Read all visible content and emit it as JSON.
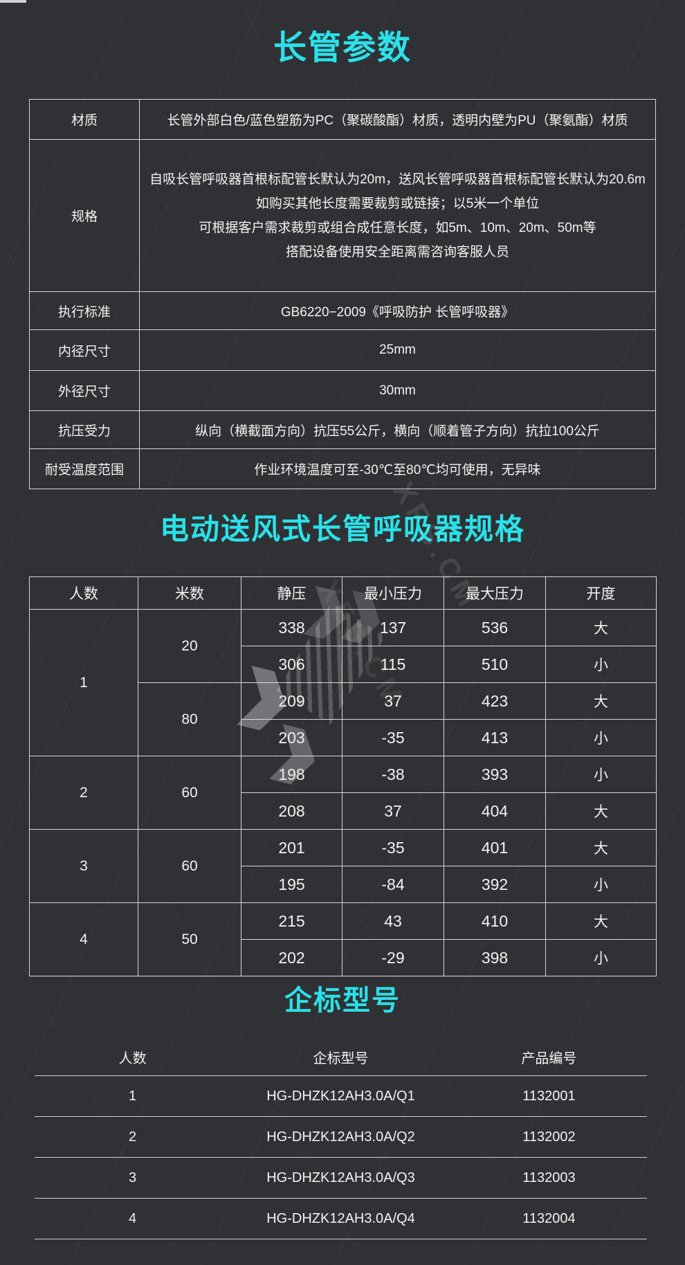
{
  "page": {
    "background": "#303134",
    "accent_cyan": "#2be1e9"
  },
  "section1": {
    "title": "长管参数",
    "rows": [
      {
        "label": "材质",
        "value": "长管外部白色/蓝色塑筋为PC（聚碳酸酯）材质，透明内壁为PU（聚氨酯）材质"
      },
      {
        "label": "规格",
        "lines": [
          "自吸长管呼吸器首根标配管长默认为20m，送风长管呼吸器首根标配管长默认为20.6m",
          "如购买其他长度需要裁剪或链接；以5米一个单位",
          "可根据客户需求裁剪或组合成任意长度，如5m、10m、20m、50m等",
          "搭配设备使用安全距离需咨询客服人员"
        ]
      },
      {
        "label": "执行标准",
        "value": "GB6220−2009《呼吸防护 长管呼吸器》"
      },
      {
        "label": "内径尺寸",
        "value": "25mm"
      },
      {
        "label": "外径尺寸",
        "value": "30mm"
      },
      {
        "label": "抗压受力",
        "value": "纵向（横截面方向）抗压55公斤，横向（顺着管子方向）抗拉100公斤"
      },
      {
        "label": "耐受温度范围",
        "value": "作业环境温度可至-30℃至80℃均可使用，无异味"
      }
    ]
  },
  "section2": {
    "title": "电动送风式长管呼吸器规格",
    "headers": [
      "人数",
      "米数",
      "静压",
      "最小压力",
      "最大压力",
      "开度"
    ],
    "groups": [
      {
        "people": "1",
        "meters": [
          {
            "m": "20",
            "rows": [
              [
                "338",
                "137",
                "536",
                "大"
              ],
              [
                "306",
                "115",
                "510",
                "小"
              ]
            ]
          },
          {
            "m": "80",
            "rows": [
              [
                "209",
                "37",
                "423",
                "大"
              ],
              [
                "203",
                "-35",
                "413",
                "小"
              ]
            ]
          }
        ]
      },
      {
        "people": "2",
        "meters": [
          {
            "m": "60",
            "rows": [
              [
                "198",
                "-38",
                "393",
                "小"
              ],
              [
                "208",
                "37",
                "404",
                "大"
              ]
            ]
          }
        ]
      },
      {
        "people": "3",
        "meters": [
          {
            "m": "60",
            "rows": [
              [
                "201",
                "-35",
                "401",
                "大"
              ],
              [
                "195",
                "-84",
                "392",
                "小"
              ]
            ]
          }
        ]
      },
      {
        "people": "4",
        "meters": [
          {
            "m": "50",
            "rows": [
              [
                "215",
                "43",
                "410",
                "大"
              ],
              [
                "202",
                "-29",
                "398",
                "小"
              ]
            ]
          }
        ]
      }
    ]
  },
  "section3": {
    "title": "企标型号",
    "headers": [
      "人数",
      "企标型号",
      "产品编号"
    ],
    "rows": [
      [
        "1",
        "HG-DHZK12AH3.0A/Q1",
        "1132001"
      ],
      [
        "2",
        "HG-DHZK12AH3.0A/Q2",
        "1132002"
      ],
      [
        "3",
        "HG-DHZK12AH3.0A/Q3",
        "1132003"
      ],
      [
        "4",
        "HG-DHZK12AH3.0A/Q4",
        "1132004"
      ]
    ]
  },
  "watermark": {
    "text": "XFS.CM"
  }
}
